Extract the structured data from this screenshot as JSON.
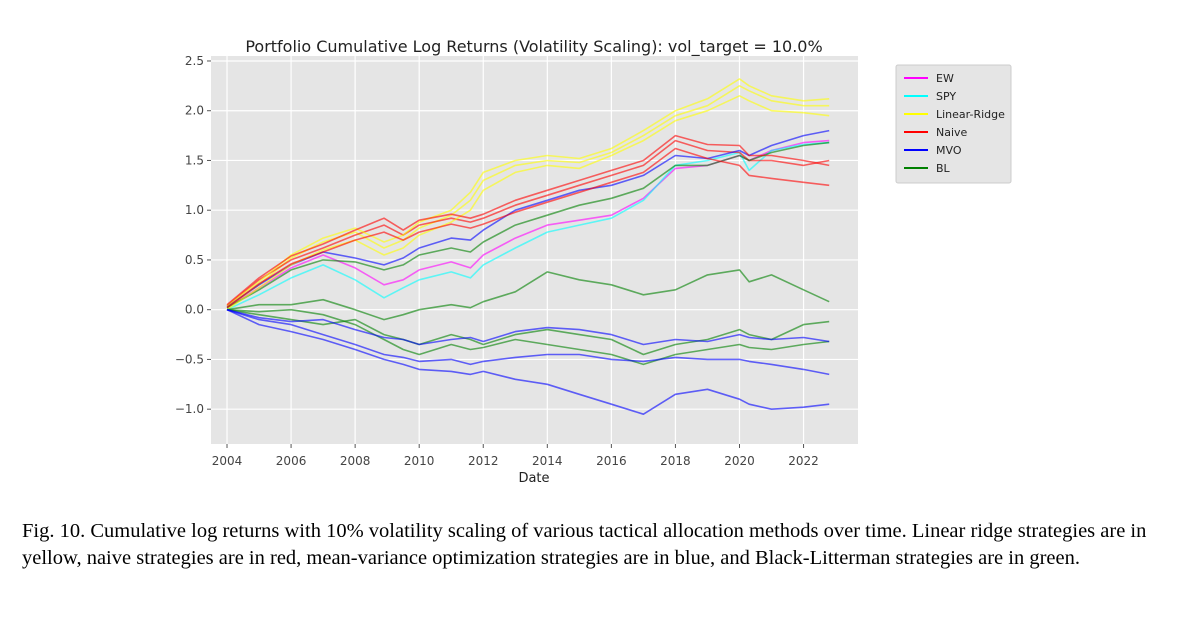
{
  "chart_data": {
    "type": "line",
    "title": "Portfolio Cumulative Log Returns (Volatility Scaling): vol_target = 10.0%",
    "xlabel": "Date",
    "ylabel": "",
    "xlim": [
      2003.5,
      2023.7
    ],
    "ylim": [
      -1.35,
      2.55
    ],
    "x_ticks": [
      2004,
      2006,
      2008,
      2010,
      2012,
      2014,
      2016,
      2018,
      2020,
      2022
    ],
    "y_ticks": [
      -1.0,
      -0.5,
      0.0,
      0.5,
      1.0,
      1.5,
      2.0,
      2.5
    ],
    "y_tick_labels": [
      "−1.0",
      "−0.5",
      "0.0",
      "0.5",
      "1.0",
      "1.5",
      "2.0",
      "2.5"
    ],
    "grid": true,
    "background": "#e5e5e5",
    "legend_position": "outside-right",
    "legend": [
      {
        "name": "EW",
        "color": "#ff00ff"
      },
      {
        "name": "SPY",
        "color": "#00ffff"
      },
      {
        "name": "Linear-Ridge",
        "color": "#ffff00"
      },
      {
        "name": "Naive",
        "color": "#ff0000"
      },
      {
        "name": "MVO",
        "color": "#0000ff"
      },
      {
        "name": "BL",
        "color": "#008000"
      }
    ],
    "x": [
      2004,
      2005,
      2006,
      2007,
      2008,
      2008.9,
      2009.5,
      2010,
      2011,
      2011.6,
      2012,
      2013,
      2014,
      2015,
      2016,
      2017,
      2018,
      2019,
      2020,
      2020.3,
      2021,
      2022,
      2022.8
    ],
    "series": [
      {
        "name": "EW",
        "color": "#ff00ff",
        "values": [
          0.02,
          0.22,
          0.42,
          0.55,
          0.42,
          0.25,
          0.3,
          0.4,
          0.48,
          0.42,
          0.55,
          0.72,
          0.85,
          0.9,
          0.95,
          1.12,
          1.42,
          1.45,
          1.55,
          1.5,
          1.6,
          1.68,
          1.7
        ]
      },
      {
        "name": "SPY",
        "color": "#00ffff",
        "values": [
          0.0,
          0.15,
          0.32,
          0.45,
          0.3,
          0.12,
          0.22,
          0.3,
          0.38,
          0.32,
          0.45,
          0.62,
          0.78,
          0.85,
          0.92,
          1.1,
          1.45,
          1.5,
          1.58,
          1.4,
          1.6,
          1.66,
          1.68
        ]
      },
      {
        "name": "Linear-Ridge",
        "color": "#ffff00",
        "values": [
          0.02,
          0.25,
          0.52,
          0.68,
          0.78,
          0.62,
          0.7,
          0.82,
          0.95,
          1.1,
          1.3,
          1.45,
          1.5,
          1.48,
          1.58,
          1.75,
          1.95,
          2.05,
          2.25,
          2.2,
          2.1,
          2.05,
          2.05
        ]
      },
      {
        "name": "Naive",
        "color": "#ff0000",
        "values": [
          0.04,
          0.3,
          0.5,
          0.62,
          0.75,
          0.85,
          0.75,
          0.85,
          0.92,
          0.88,
          0.92,
          1.05,
          1.15,
          1.25,
          1.35,
          1.45,
          1.7,
          1.6,
          1.58,
          1.5,
          1.5,
          1.45,
          1.5
        ]
      },
      {
        "name": "MVO",
        "color": "#0000ff",
        "values": [
          0.03,
          0.25,
          0.45,
          0.58,
          0.52,
          0.45,
          0.52,
          0.62,
          0.72,
          0.7,
          0.8,
          1.0,
          1.1,
          1.2,
          1.25,
          1.35,
          1.55,
          1.52,
          1.6,
          1.55,
          1.65,
          1.75,
          1.8
        ]
      },
      {
        "name": "BL",
        "color": "#008000",
        "values": [
          0.02,
          0.2,
          0.4,
          0.5,
          0.48,
          0.4,
          0.45,
          0.55,
          0.62,
          0.58,
          0.68,
          0.85,
          0.95,
          1.05,
          1.12,
          1.22,
          1.45,
          1.45,
          1.55,
          1.5,
          1.58,
          1.65,
          1.68
        ]
      },
      {
        "name": "Linear-Ridge",
        "color": "#ffff00",
        "values": [
          0.0,
          0.22,
          0.45,
          0.6,
          0.7,
          0.55,
          0.62,
          0.75,
          0.88,
          1.0,
          1.2,
          1.38,
          1.45,
          1.42,
          1.55,
          1.7,
          1.9,
          2.0,
          2.15,
          2.1,
          2.0,
          1.98,
          1.95
        ]
      },
      {
        "name": "Linear-Ridge",
        "color": "#ffff00",
        "values": [
          0.04,
          0.28,
          0.55,
          0.72,
          0.82,
          0.68,
          0.75,
          0.88,
          1.0,
          1.18,
          1.38,
          1.5,
          1.55,
          1.52,
          1.62,
          1.8,
          2.0,
          2.12,
          2.32,
          2.25,
          2.15,
          2.1,
          2.12
        ]
      },
      {
        "name": "Naive",
        "color": "#ff0000",
        "values": [
          0.02,
          0.26,
          0.46,
          0.58,
          0.7,
          0.78,
          0.7,
          0.78,
          0.86,
          0.82,
          0.86,
          0.98,
          1.08,
          1.18,
          1.28,
          1.38,
          1.62,
          1.52,
          1.45,
          1.35,
          1.32,
          1.28,
          1.25
        ]
      },
      {
        "name": "Naive",
        "color": "#ff0000",
        "values": [
          0.05,
          0.32,
          0.54,
          0.66,
          0.8,
          0.92,
          0.8,
          0.9,
          0.96,
          0.92,
          0.96,
          1.1,
          1.2,
          1.3,
          1.4,
          1.5,
          1.75,
          1.66,
          1.65,
          1.55,
          1.55,
          1.5,
          1.45
        ]
      },
      {
        "name": "BL",
        "color": "#008000",
        "values": [
          0.0,
          0.05,
          0.05,
          0.1,
          0.0,
          -0.1,
          -0.05,
          0.0,
          0.05,
          0.02,
          0.08,
          0.18,
          0.38,
          0.3,
          0.25,
          0.15,
          0.2,
          0.35,
          0.4,
          0.28,
          0.35,
          0.2,
          0.08
        ]
      },
      {
        "name": "BL",
        "color": "#008000",
        "values": [
          0.0,
          -0.05,
          -0.1,
          -0.15,
          -0.1,
          -0.25,
          -0.3,
          -0.35,
          -0.25,
          -0.3,
          -0.35,
          -0.25,
          -0.2,
          -0.25,
          -0.3,
          -0.45,
          -0.35,
          -0.3,
          -0.2,
          -0.25,
          -0.3,
          -0.15,
          -0.12
        ]
      },
      {
        "name": "BL",
        "color": "#008000",
        "values": [
          0.0,
          -0.02,
          0.0,
          -0.05,
          -0.15,
          -0.3,
          -0.4,
          -0.45,
          -0.35,
          -0.4,
          -0.38,
          -0.3,
          -0.35,
          -0.4,
          -0.45,
          -0.55,
          -0.45,
          -0.4,
          -0.35,
          -0.38,
          -0.4,
          -0.35,
          -0.32
        ]
      },
      {
        "name": "MVO",
        "color": "#0000ff",
        "values": [
          0.0,
          -0.08,
          -0.12,
          -0.1,
          -0.2,
          -0.28,
          -0.3,
          -0.35,
          -0.3,
          -0.28,
          -0.32,
          -0.22,
          -0.18,
          -0.2,
          -0.25,
          -0.35,
          -0.3,
          -0.32,
          -0.25,
          -0.28,
          -0.3,
          -0.28,
          -0.32
        ]
      },
      {
        "name": "MVO",
        "color": "#0000ff",
        "values": [
          0.0,
          -0.1,
          -0.15,
          -0.25,
          -0.35,
          -0.45,
          -0.48,
          -0.52,
          -0.5,
          -0.55,
          -0.52,
          -0.48,
          -0.45,
          -0.45,
          -0.5,
          -0.52,
          -0.48,
          -0.5,
          -0.5,
          -0.52,
          -0.55,
          -0.6,
          -0.65
        ]
      },
      {
        "name": "MVO",
        "color": "#0000ff",
        "values": [
          0.0,
          -0.15,
          -0.22,
          -0.3,
          -0.4,
          -0.5,
          -0.55,
          -0.6,
          -0.62,
          -0.65,
          -0.62,
          -0.7,
          -0.75,
          -0.85,
          -0.95,
          -1.05,
          -0.85,
          -0.8,
          -0.9,
          -0.95,
          -1.0,
          -0.98,
          -0.95
        ]
      }
    ]
  },
  "caption": {
    "text": "Fig. 10.  Cumulative log returns with 10% volatility scaling of various tactical allocation methods over time. Linear ridge strategies are in yellow, naive strategies are in red, mean-variance optimization strategies are in blue, and Black-Litterman strategies are in green."
  }
}
